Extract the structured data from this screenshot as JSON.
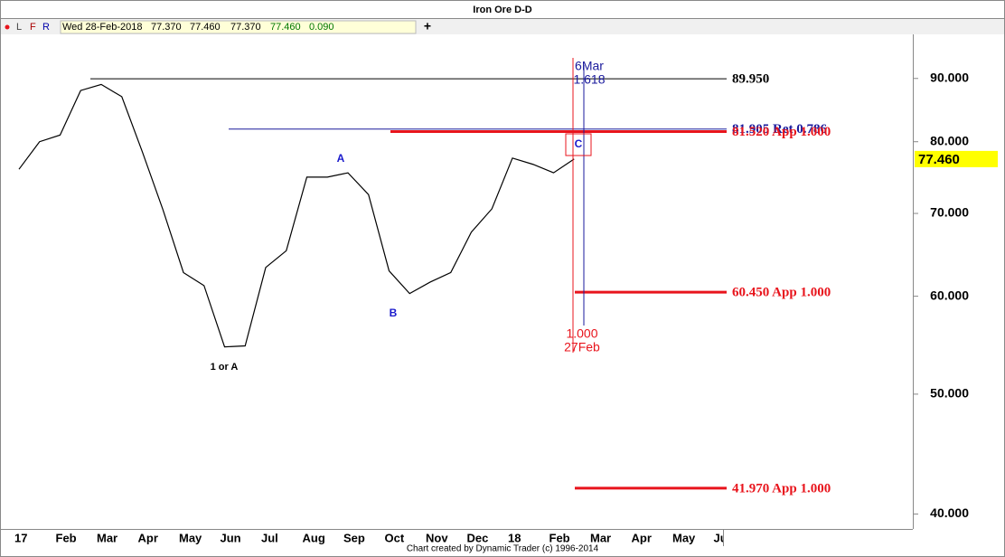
{
  "header": {
    "title": "Iron Ore D-D",
    "toolbar": [
      "L",
      "F",
      "R"
    ],
    "plus": "+",
    "date": "Wed 28-Feb-2018",
    "open": "77.370",
    "high": "77.460",
    "low": "77.370",
    "close": "77.460",
    "change": "0.090"
  },
  "chart_data": {
    "type": "line",
    "log_scale": true,
    "categories": [
      "17",
      null,
      "Feb",
      null,
      "Mar",
      null,
      "Apr",
      null,
      "May",
      null,
      "Jun",
      null,
      "Jul",
      null,
      "Aug",
      null,
      "Sep",
      null,
      "Oct",
      null,
      "Nov",
      null,
      "Dec",
      null,
      "18",
      null,
      "Feb",
      null,
      "Mar",
      null,
      "Apr",
      null,
      "May",
      null,
      "Jun",
      null
    ],
    "series": [
      {
        "color": "#000000",
        "values": [
          76,
          80,
          81,
          88,
          89,
          87,
          78.5,
          70.5,
          62.7,
          61.2,
          54.6,
          54.7,
          63.3,
          65.3,
          74.9,
          74.9,
          75.5,
          72.5,
          62.9,
          60.3,
          61.6,
          62.7,
          67.6,
          70.6,
          77.6,
          76.7,
          75.5,
          77.46,
          null,
          null,
          null,
          null,
          null,
          null,
          null,
          null
        ]
      }
    ],
    "ylim": [
      38.9,
      97.7
    ],
    "yticks": [
      {
        "value": 40,
        "label": "40.000"
      },
      {
        "value": 50,
        "label": "50.000"
      },
      {
        "value": 60,
        "label": "60.000"
      },
      {
        "value": 70,
        "label": "70.000"
      },
      {
        "value": 80,
        "label": "80.000"
      },
      {
        "value": 90,
        "label": "90.000"
      }
    ],
    "last_price": {
      "value": 77.46,
      "label": "77.460"
    },
    "levels": [
      {
        "value": 89.95,
        "label": "89.950",
        "color": "#000000"
      },
      {
        "value": 81.905,
        "label": "81.905 Ret 0.786",
        "color": "#1a1a9c"
      },
      {
        "value": 81.52,
        "label": "81.520 App 1.000",
        "color": "#e8141c"
      },
      {
        "value": 60.45,
        "label": "60.450 App 1.000",
        "color": "#e8141c"
      },
      {
        "value": 41.97,
        "label": "41.970 App 1.000",
        "color": "#e8141c"
      }
    ],
    "time_projections": [
      {
        "ratio": "1.000",
        "date": "27Feb",
        "color": "#e8141c"
      },
      {
        "ratio": "1.618",
        "date": "6Mar",
        "color": "#1a1a9c"
      }
    ],
    "annotations": [
      {
        "text": "A",
        "color": "#1a1acc"
      },
      {
        "text": "B",
        "color": "#1a1acc"
      },
      {
        "text": "C",
        "color": "#1a1acc"
      },
      {
        "text": "1 or A",
        "color": "#000000"
      }
    ],
    "footer": "Chart created by Dynamic Trader (c) 1996-2014"
  }
}
